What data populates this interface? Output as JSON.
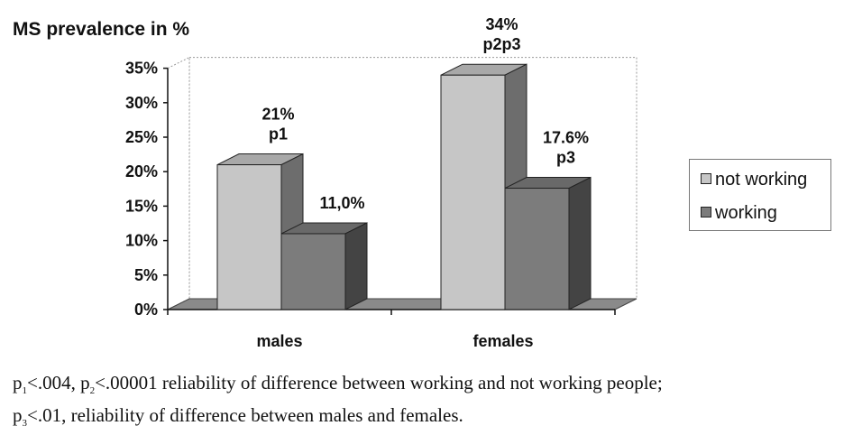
{
  "chart_data": {
    "type": "bar",
    "style": "3d-clustered",
    "title": "MS prevalence in %",
    "categories": [
      "males",
      "females"
    ],
    "series": [
      {
        "name": "not working",
        "color": "#c6c6c6",
        "values": [
          21,
          34
        ]
      },
      {
        "name": "working",
        "color": "#7c7c7c",
        "values": [
          11.0,
          17.6
        ]
      }
    ],
    "data_labels": [
      [
        "21%\np1",
        "34%\np2p3"
      ],
      [
        "11,0%",
        "17.6%\np3"
      ]
    ],
    "ylim": [
      0,
      35
    ],
    "yticks": [
      0,
      5,
      10,
      15,
      20,
      25,
      30,
      35
    ],
    "ytick_labels": [
      "0%",
      "5%",
      "10%",
      "15%",
      "20%",
      "25%",
      "30%",
      "35%"
    ],
    "xlabel": "",
    "ylabel": "",
    "legend_position": "right"
  },
  "footnote": {
    "line1": {
      "p1": "p",
      "sub1": "1",
      "t1": "<.004, ",
      "p2": "p",
      "sub2": "2",
      "t2": "<.00001 reliability of difference between working and not working people;"
    },
    "line2": {
      "p3": "p",
      "sub3": "3",
      "t3": "<.01, reliability of difference between males and females."
    }
  }
}
